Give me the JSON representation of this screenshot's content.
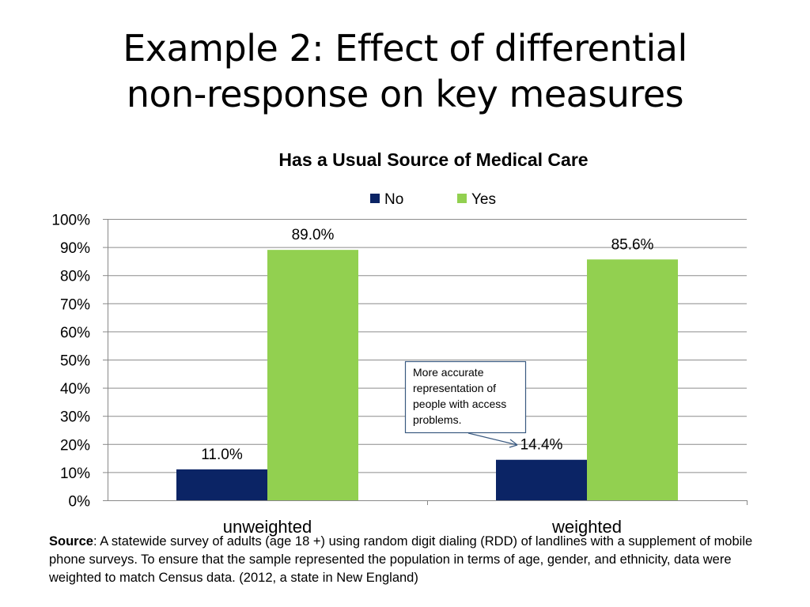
{
  "slide": {
    "title_line1": "Example 2: Effect of differential",
    "title_line2": "non-response on key measures"
  },
  "chart_data": {
    "type": "bar",
    "title": "Has a Usual Source of Medical Care",
    "categories": [
      "unweighted",
      "weighted"
    ],
    "series": [
      {
        "name": "No",
        "values": [
          11.0,
          14.4
        ],
        "labels": [
          "11.0%",
          "14.4%"
        ],
        "color": "#0b2465"
      },
      {
        "name": "Yes",
        "values": [
          89.0,
          85.6
        ],
        "labels": [
          "89.0%",
          "85.6%"
        ],
        "color": "#92d050"
      }
    ],
    "ylim": [
      0,
      100
    ],
    "yticks": [
      "0%",
      "10%",
      "20%",
      "30%",
      "40%",
      "50%",
      "60%",
      "70%",
      "80%",
      "90%",
      "100%"
    ],
    "grid": true,
    "legend": "top",
    "annotation": {
      "lines": [
        "More accurate",
        "representation of",
        "people with access",
        "problems."
      ],
      "points_to": "weighted No 14.4%"
    }
  },
  "note": {
    "source_label": "Source",
    "text": ": A statewide survey of adults (age 18 +) using random digit dialing (RDD) of landlines with a supplement of mobile phone surveys. To ensure that the sample represented the population in terms of age, gender, and ethnicity, data were weighted to match Census data. (2012, a state in New England)"
  }
}
